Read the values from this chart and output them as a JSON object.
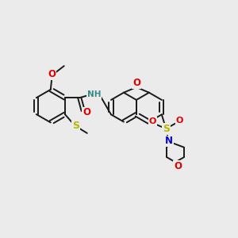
{
  "bg_color": "#ebebeb",
  "bond_color": "#1a1a1a",
  "bond_lw": 1.4,
  "atom_colors": {
    "O": "#e00000",
    "N": "#0000e0",
    "S": "#b8b800",
    "H": "#3a8888",
    "C": "#1a1a1a"
  },
  "fig_w": 3.0,
  "fig_h": 3.0,
  "dpi": 100,
  "xlim": [
    0,
    10
  ],
  "ylim": [
    0,
    10
  ]
}
